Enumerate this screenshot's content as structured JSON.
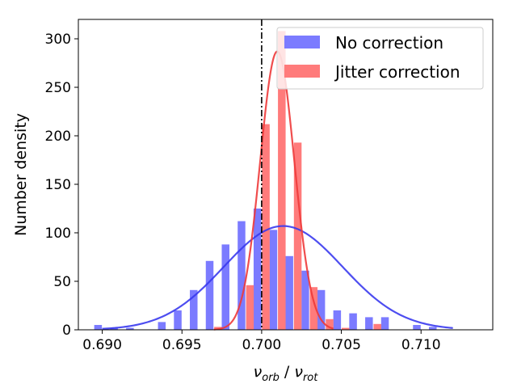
{
  "chart_data": {
    "type": "bar",
    "title": "",
    "xlabel_parts": {
      "base1": "ν",
      "sub1": "orb",
      "sep": " / ",
      "base2": "ν",
      "sub2": "rot"
    },
    "ylabel": "Number density",
    "xlim": [
      0.6885,
      0.7145
    ],
    "ylim": [
      0,
      320
    ],
    "x_ticks": [
      0.69,
      0.695,
      0.7,
      0.705,
      0.71
    ],
    "x_tick_labels": [
      "0.690",
      "0.695",
      "0.700",
      "0.705",
      "0.710"
    ],
    "y_ticks": [
      0,
      50,
      100,
      150,
      200,
      250,
      300
    ],
    "y_tick_labels": [
      "0",
      "50",
      "100",
      "150",
      "200",
      "250",
      "300"
    ],
    "vline_x": 0.7,
    "legend_position": "top-right",
    "series": [
      {
        "name": "No correction",
        "color": "#7b7bff",
        "bars": [
          {
            "x": 0.69,
            "y": 5
          },
          {
            "x": 0.691,
            "y": 2
          },
          {
            "x": 0.692,
            "y": 2
          },
          {
            "x": 0.694,
            "y": 8
          },
          {
            "x": 0.695,
            "y": 20
          },
          {
            "x": 0.696,
            "y": 41
          },
          {
            "x": 0.697,
            "y": 71
          },
          {
            "x": 0.698,
            "y": 88
          },
          {
            "x": 0.699,
            "y": 112
          },
          {
            "x": 0.7,
            "y": 125
          },
          {
            "x": 0.701,
            "y": 103
          },
          {
            "x": 0.702,
            "y": 76
          },
          {
            "x": 0.703,
            "y": 61
          },
          {
            "x": 0.704,
            "y": 41
          },
          {
            "x": 0.705,
            "y": 20
          },
          {
            "x": 0.706,
            "y": 17
          },
          {
            "x": 0.707,
            "y": 13
          },
          {
            "x": 0.708,
            "y": 13
          },
          {
            "x": 0.71,
            "y": 5
          },
          {
            "x": 0.711,
            "y": 3
          }
        ],
        "fit": {
          "mu": 0.70135,
          "sigma": 0.00373,
          "amplitude": 107,
          "x_range": [
            0.69,
            0.712
          ],
          "color": "#3a3aee"
        }
      },
      {
        "name": "Jitter correction",
        "color": "#ff7b7b",
        "bars": [
          {
            "x": 0.697,
            "y": 3
          },
          {
            "x": 0.699,
            "y": 46
          },
          {
            "x": 0.7,
            "y": 212
          },
          {
            "x": 0.701,
            "y": 308
          },
          {
            "x": 0.702,
            "y": 193
          },
          {
            "x": 0.703,
            "y": 44
          },
          {
            "x": 0.704,
            "y": 11
          },
          {
            "x": 0.705,
            "y": 2
          },
          {
            "x": 0.707,
            "y": 6
          }
        ],
        "fit": {
          "mu": 0.70098,
          "sigma": 0.00107,
          "amplitude": 287,
          "x_range": [
            0.697,
            0.7045
          ],
          "color": "#ee3a3a"
        }
      }
    ]
  }
}
